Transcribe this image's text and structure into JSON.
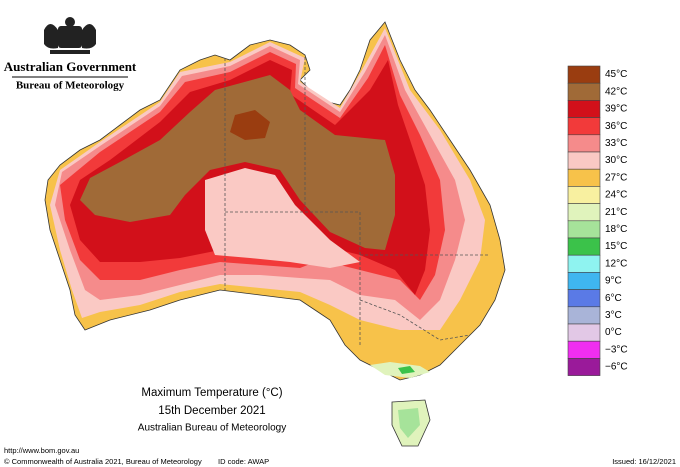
{
  "header": {
    "agency": "Australian Government",
    "bureau": "Bureau of Meteorology"
  },
  "caption": {
    "title": "Maximum Temperature (°C)",
    "date": "15th December 2021",
    "source": "Australian Bureau of Meteorology"
  },
  "legend": [
    {
      "label": "45°C",
      "color": "#9a3d10"
    },
    {
      "label": "42°C",
      "color": "#a06a37"
    },
    {
      "label": "39°C",
      "color": "#d2101a"
    },
    {
      "label": "36°C",
      "color": "#f23a3a"
    },
    {
      "label": "33°C",
      "color": "#f58b8b"
    },
    {
      "label": "30°C",
      "color": "#fac9c4"
    },
    {
      "label": "27°C",
      "color": "#f7c24a"
    },
    {
      "label": "24°C",
      "color": "#f8f0a0"
    },
    {
      "label": "21°C",
      "color": "#e0f3bc"
    },
    {
      "label": "18°C",
      "color": "#a6e39a"
    },
    {
      "label": "15°C",
      "color": "#3bc24a"
    },
    {
      "label": "12°C",
      "color": "#8ff3f0"
    },
    {
      "label": "9°C",
      "color": "#3fb6f0"
    },
    {
      "label": "6°C",
      "color": "#5a7ae6"
    },
    {
      "label": "3°C",
      "color": "#a9b4d8"
    },
    {
      "label": "0°C",
      "color": "#e2c8e6"
    },
    {
      "label": "−3°C",
      "color": "#f02ef0"
    },
    {
      "label": "−6°C",
      "color": "#9a1a9a"
    }
  ],
  "footer": {
    "url": "http://www.bom.gov.au",
    "copyright": "© Commonwealth of Australia 2021, Bureau of Meteorology",
    "id": "ID code: AWAP",
    "issued": "Issued: 16/12/2021"
  }
}
